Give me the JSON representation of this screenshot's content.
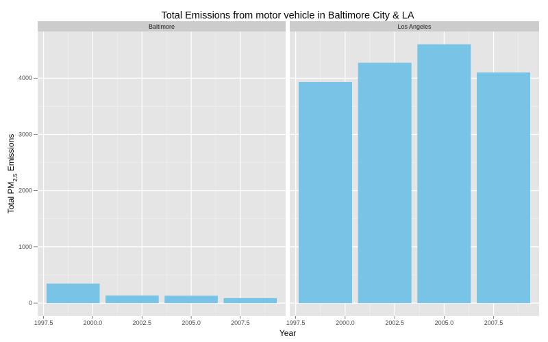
{
  "chart_data": {
    "type": "bar",
    "title": "Total Emissions from motor vehicle in Baltimore City & LA",
    "xlabel": "Year",
    "ylabel": {
      "prefix": "Total PM",
      "subscript": "2.5",
      "suffix": " Emissions"
    },
    "x_ticks": [
      "1997.5",
      "2000.0",
      "2002.5",
      "2005.0",
      "2007.5"
    ],
    "x_tick_values": [
      1997.5,
      2000.0,
      2002.5,
      2005.0,
      2007.5
    ],
    "xlim": [
      1997.2,
      2009.8
    ],
    "y_ticks": [
      "0",
      "1000",
      "2000",
      "3000",
      "4000"
    ],
    "y_tick_values": [
      0,
      1000,
      2000,
      3000,
      4000
    ],
    "ylim": [
      -230,
      4830
    ],
    "bar_width_years": 2.7,
    "bar_color": "#77c4e6",
    "panel_background": "#e5e5e5",
    "strip_background": "#cccccc",
    "grid": true,
    "panels": [
      {
        "name": "Baltimore",
        "x": [
          1999,
          2002,
          2005,
          2008
        ],
        "values": [
          346.8,
          134.3,
          130.4,
          88.3
        ]
      },
      {
        "name": "Los Angeles",
        "x": [
          1999,
          2002,
          2005,
          2008
        ],
        "values": [
          3931.1,
          4274.0,
          4601.4,
          4101.3
        ]
      }
    ]
  }
}
